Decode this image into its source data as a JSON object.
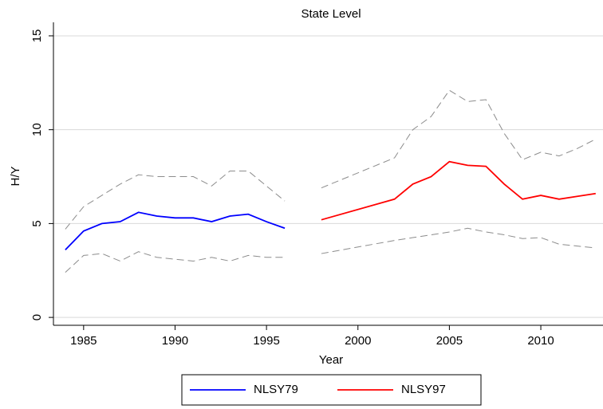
{
  "chart_data": {
    "type": "line",
    "title": "State Level",
    "xlabel": "Year",
    "ylabel": "H/Y",
    "xlim": [
      1983.35,
      2013.4
    ],
    "ylim": [
      -0.42,
      15.72
    ],
    "xticks": [
      1985,
      1990,
      1995,
      2000,
      2005,
      2010
    ],
    "yticks": [
      0,
      5,
      10,
      15
    ],
    "grid": true,
    "series": [
      {
        "name": "NLSY79",
        "color": "#0000ff",
        "x": [
          1984,
          1985,
          1986,
          1987,
          1988,
          1989,
          1990,
          1991,
          1992,
          1993,
          1994,
          1995,
          1996
        ],
        "values": [
          3.6,
          4.6,
          5.0,
          5.1,
          5.6,
          5.4,
          5.3,
          5.3,
          5.1,
          5.4,
          5.5,
          5.1,
          4.75
        ]
      },
      {
        "name": "NLSY97",
        "color": "#ff0000",
        "x": [
          1998,
          2002,
          2003,
          2004,
          2005,
          2006,
          2007,
          2008,
          2009,
          2010,
          2011,
          2012,
          2013
        ],
        "values": [
          5.2,
          6.3,
          7.1,
          7.5,
          8.3,
          8.1,
          8.05,
          7.1,
          6.3,
          6.5,
          6.3,
          6.45,
          6.6
        ]
      }
    ],
    "bands": [
      {
        "color": "#8c8c8c",
        "x": [
          1984,
          1985,
          1986,
          1987,
          1988,
          1989,
          1990,
          1991,
          1992,
          1993,
          1994,
          1995,
          1996
        ],
        "values": [
          4.7,
          5.9,
          6.5,
          7.1,
          7.6,
          7.5,
          7.5,
          7.5,
          7.0,
          7.8,
          7.8,
          7.0,
          6.2
        ]
      },
      {
        "color": "#8c8c8c",
        "x": [
          1984,
          1985,
          1986,
          1987,
          1988,
          1989,
          1990,
          1991,
          1992,
          1993,
          1994,
          1995,
          1996
        ],
        "values": [
          2.4,
          3.3,
          3.4,
          3.0,
          3.5,
          3.2,
          3.1,
          3.0,
          3.2,
          3.0,
          3.3,
          3.2,
          3.2
        ]
      },
      {
        "color": "#8c8c8c",
        "x": [
          1998,
          2002,
          2003,
          2004,
          2005,
          2006,
          2007,
          2008,
          2009,
          2010,
          2011,
          2012,
          2013
        ],
        "values": [
          6.9,
          8.5,
          10.0,
          10.7,
          12.1,
          11.5,
          11.6,
          9.8,
          8.4,
          8.8,
          8.6,
          9.0,
          9.5
        ]
      },
      {
        "color": "#8c8c8c",
        "x": [
          1998,
          2002,
          2003,
          2004,
          2005,
          2006,
          2007,
          2008,
          2009,
          2010,
          2011,
          2012,
          2013
        ],
        "values": [
          3.4,
          4.1,
          4.25,
          4.4,
          4.55,
          4.75,
          4.55,
          4.4,
          4.2,
          4.25,
          3.9,
          3.8,
          3.7
        ]
      }
    ]
  }
}
